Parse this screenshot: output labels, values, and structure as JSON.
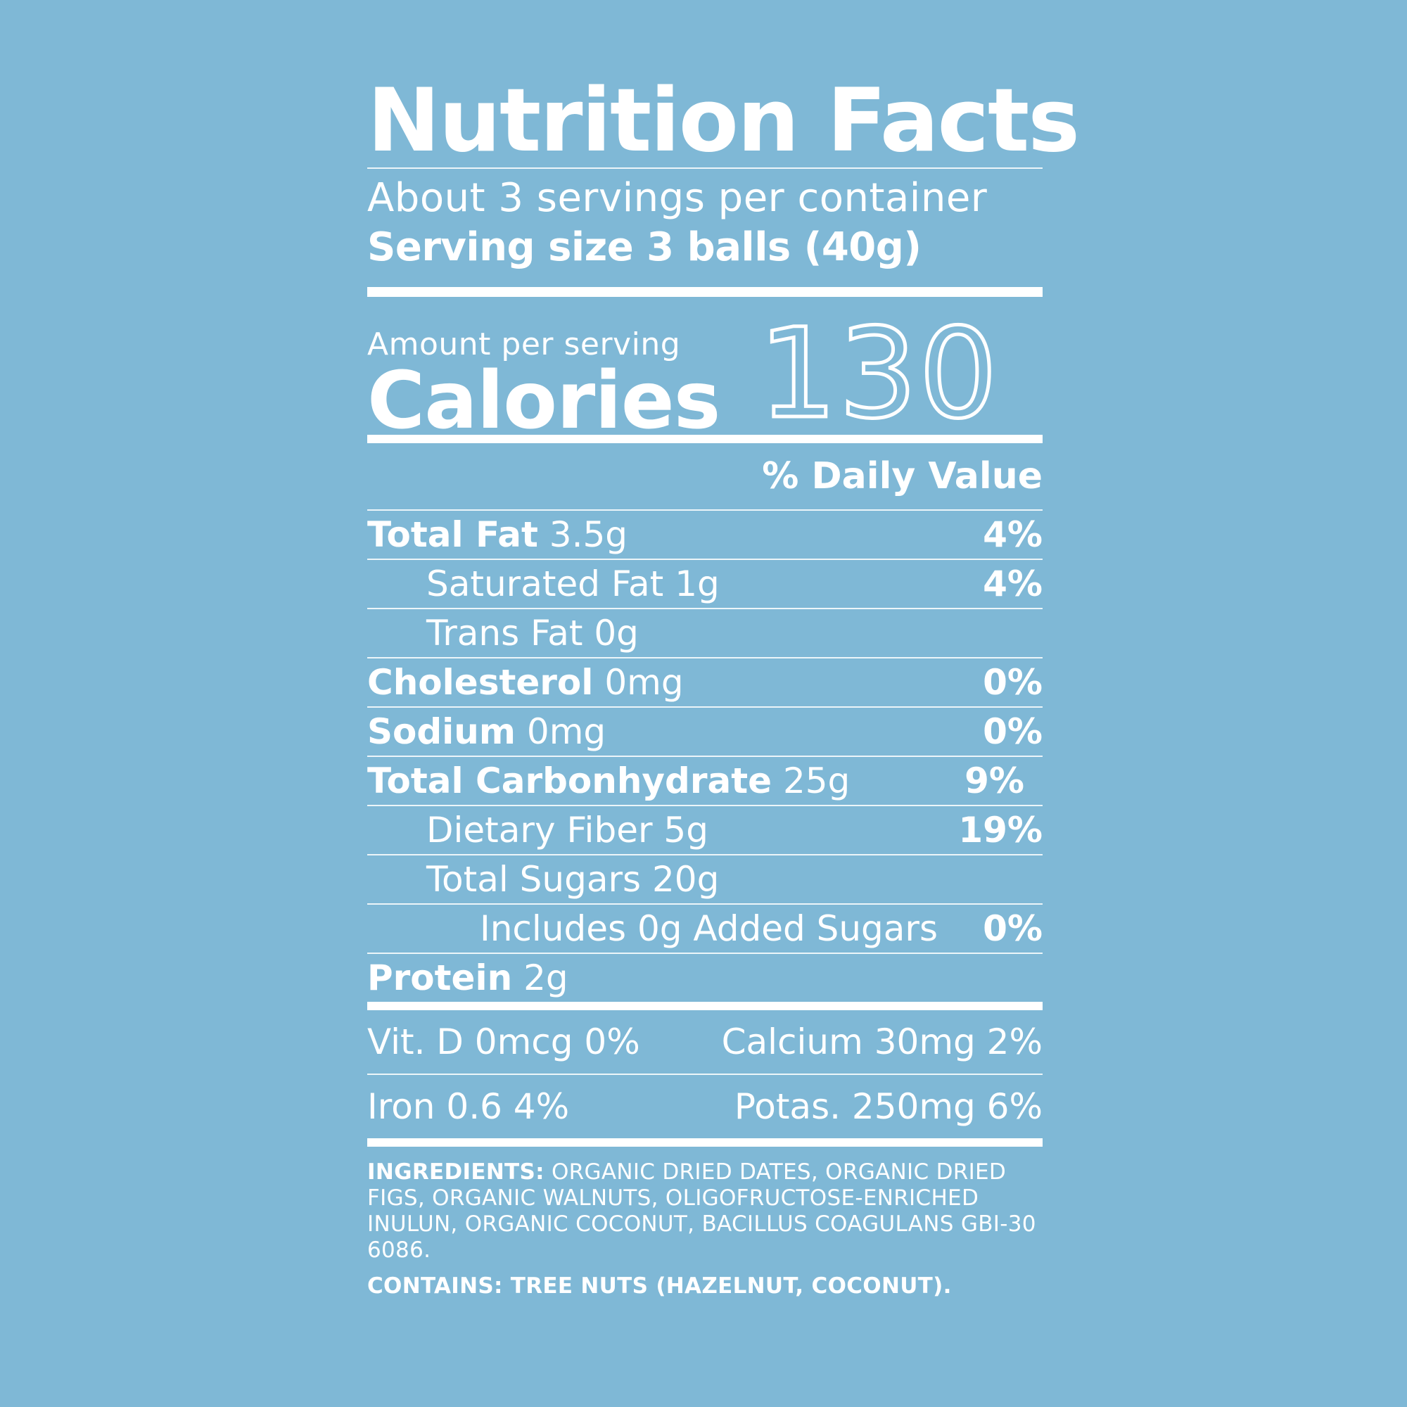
{
  "title": "Nutrition Facts",
  "servings_per_container": "About 3 servings per container",
  "serving_size": "Serving size 3 balls (40g)",
  "amount_per_serving": "Amount per serving",
  "calories_label": "Calories",
  "calories_value": "130",
  "daily_value_header": "% Daily Value",
  "nutrients": [
    {
      "name": "Total Fat",
      "amount": "3.5g",
      "dv": "4%"
    },
    {
      "name": "Saturated Fat",
      "amount": "1g",
      "dv": "4%"
    },
    {
      "name": "Trans Fat",
      "amount": "0g",
      "dv": ""
    },
    {
      "name": "Cholesterol",
      "amount": "0mg",
      "dv": "0%"
    },
    {
      "name": "Sodium",
      "amount": "0mg",
      "dv": "0%"
    },
    {
      "name": "Total Carbonhydrate",
      "amount": "25g",
      "dv": "9%"
    },
    {
      "name": "Dietary Fiber",
      "amount": "5g",
      "dv": "19%"
    },
    {
      "name": "Total Sugars",
      "amount": "20g",
      "dv": ""
    },
    {
      "name": "Includes 0g Added Sugars",
      "amount": "",
      "dv": "0%"
    },
    {
      "name": "Protein",
      "amount": "2g",
      "dv": ""
    }
  ],
  "vitamins": {
    "vit_d": "Vit. D 0mcg 0%",
    "calcium": "Calcium 30mg 2%",
    "iron": "Iron 0.6 4%",
    "potassium": "Potas. 250mg 6%"
  },
  "ingredients_label": "INGREDIENTS:",
  "ingredients_text": "ORGANIC DRIED DATES, ORGANIC DRIED FIGS, ORGANIC WALNUTS, OLIGOFRUCTOSE-ENRICHED INULUN, ORGANIC COCONUT, BACILLUS COAGULANS GBI-30 6086.",
  "contains_text": "CONTAINS: TREE NUTS (HAZELNUT, COCONUT).",
  "colors": {
    "background": "#7fb8d6",
    "text": "#ffffff"
  }
}
